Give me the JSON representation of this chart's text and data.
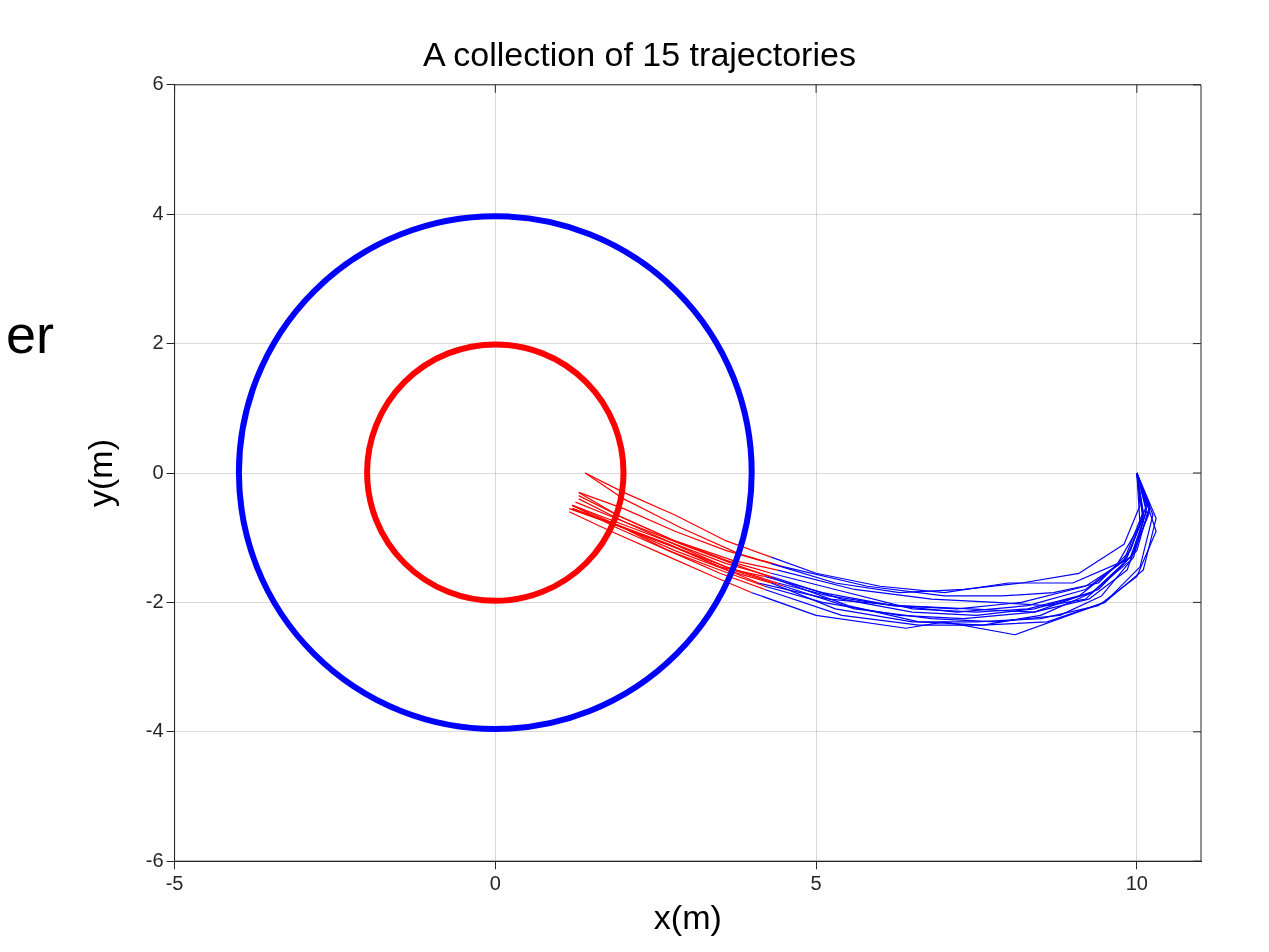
{
  "chart_data": {
    "type": "line",
    "title": "A collection of 15 trajectories",
    "xlabel": "x(m)",
    "ylabel": "y(m)",
    "annotations": [
      "er"
    ],
    "xlim": [
      -5,
      11
    ],
    "xticks": [
      -5,
      0,
      5,
      10
    ],
    "ylim": [
      -6,
      6
    ],
    "yticks": [
      -6,
      -4,
      -2,
      0,
      2,
      4,
      6
    ],
    "grid": true,
    "marker": "none",
    "line_style": "solid",
    "series": [
      {
        "color": "#0000ff",
        "x": [
          10,
          10.15,
          9.9,
          9.2,
          8.2,
          7.2,
          6.2,
          5.2,
          4.4
        ],
        "values": [
          0,
          -0.6,
          -1.3,
          -1.75,
          -2.0,
          -2.1,
          -2.05,
          -1.9,
          -1.7
        ]
      },
      {
        "color": "#0000ff",
        "x": [
          10,
          10.2,
          10.0,
          9.4,
          8.4,
          7.3,
          6.3,
          5.1,
          4.2
        ],
        "values": [
          0,
          -0.5,
          -1.2,
          -1.8,
          -2.15,
          -2.25,
          -2.2,
          -2.0,
          -1.75
        ]
      },
      {
        "color": "#0000ff",
        "x": [
          10,
          10.3,
          10.1,
          9.5,
          8.1,
          7.0,
          6.4,
          5.0,
          4.0
        ],
        "values": [
          0,
          -0.7,
          -1.5,
          -2.0,
          -2.5,
          -2.3,
          -2.4,
          -2.2,
          -1.85
        ]
      },
      {
        "color": "#0000ff",
        "x": [
          10,
          10.05,
          9.7,
          9.0,
          8.0,
          7.0,
          6.0,
          5.0,
          4.3
        ],
        "values": [
          0,
          -0.8,
          -1.4,
          -1.7,
          -1.7,
          -1.85,
          -1.75,
          -1.55,
          -1.3
        ]
      },
      {
        "color": "#0000ff",
        "x": [
          10,
          10.1,
          9.8,
          9.1,
          8.3,
          7.5,
          6.5,
          5.3,
          4.3
        ],
        "values": [
          0,
          -0.6,
          -1.35,
          -1.9,
          -2.1,
          -2.15,
          -2.1,
          -1.8,
          -1.55
        ]
      },
      {
        "color": "#0000ff",
        "x": [
          10,
          10.2,
          9.95,
          9.3,
          8.5,
          7.6,
          6.6,
          5.5,
          4.4
        ],
        "values": [
          0,
          -0.55,
          -1.25,
          -1.85,
          -2.2,
          -2.35,
          -2.3,
          -2.05,
          -1.65
        ]
      },
      {
        "color": "#0000ff",
        "x": [
          10,
          10.1,
          9.8,
          9.2,
          8.6,
          7.8,
          6.8,
          5.6,
          4.4
        ],
        "values": [
          0,
          -0.7,
          -1.4,
          -1.95,
          -2.05,
          -2.0,
          -1.95,
          -1.8,
          -1.5
        ]
      },
      {
        "color": "#0000ff",
        "x": [
          10,
          10.15,
          9.9,
          9.4,
          8.7,
          7.9,
          7.0,
          5.8,
          4.5
        ],
        "values": [
          0,
          -0.5,
          -1.2,
          -1.7,
          -1.85,
          -1.9,
          -1.9,
          -1.75,
          -1.45
        ]
      },
      {
        "color": "#0000ff",
        "x": [
          10,
          10.25,
          10.05,
          9.5,
          8.6,
          7.6,
          6.6,
          5.4,
          4.2
        ],
        "values": [
          0,
          -0.65,
          -1.45,
          -2.0,
          -2.3,
          -2.35,
          -2.35,
          -2.2,
          -1.8
        ]
      },
      {
        "color": "#0000ff",
        "x": [
          10,
          10.1,
          9.85,
          9.25,
          8.4,
          7.4,
          6.3,
          5.2,
          4.1
        ],
        "values": [
          0,
          -0.75,
          -1.5,
          -1.95,
          -2.15,
          -2.1,
          -2.05,
          -1.95,
          -1.7
        ]
      },
      {
        "color": "#0000ff",
        "x": [
          10,
          10.05,
          9.8,
          9.1,
          8.2,
          7.3,
          6.3,
          5.3,
          4.3
        ],
        "values": [
          0,
          -0.5,
          -1.1,
          -1.55,
          -1.7,
          -1.8,
          -1.85,
          -1.7,
          -1.4
        ]
      },
      {
        "color": "#0000ff",
        "x": [
          10,
          10.2,
          9.9,
          9.3,
          8.4,
          7.5,
          6.5,
          5.4,
          4.3
        ],
        "values": [
          0,
          -0.6,
          -1.35,
          -1.85,
          -2.1,
          -2.2,
          -2.15,
          -1.95,
          -1.6
        ]
      },
      {
        "color": "#0000ff",
        "x": [
          10,
          10.15,
          9.95,
          9.45,
          8.8,
          7.8,
          6.8,
          5.6,
          4.5
        ],
        "values": [
          0,
          -0.55,
          -1.3,
          -1.9,
          -2.2,
          -2.3,
          -2.25,
          -2.1,
          -1.75
        ]
      },
      {
        "color": "#0000ff",
        "x": [
          10,
          10.1,
          9.85,
          9.2,
          8.3,
          7.2,
          6.2,
          5.1,
          4.2
        ],
        "values": [
          0,
          -0.65,
          -1.3,
          -1.8,
          -2.05,
          -2.15,
          -2.05,
          -1.85,
          -1.6
        ]
      },
      {
        "color": "#0000ff",
        "x": [
          10,
          10.3,
          10.0,
          9.4,
          8.5,
          7.5,
          6.5,
          5.3,
          4.3
        ],
        "values": [
          0,
          -0.9,
          -1.6,
          -2.05,
          -2.25,
          -2.3,
          -2.3,
          -2.1,
          -1.7
        ]
      },
      {
        "color": "#ff0000",
        "x": [
          4.4,
          3.6,
          2.8,
          2.0,
          1.2
        ],
        "values": [
          -1.7,
          -1.45,
          -1.15,
          -0.85,
          -0.55
        ]
      },
      {
        "color": "#ff0000",
        "x": [
          4.2,
          3.5,
          2.7,
          1.9,
          1.2
        ],
        "values": [
          -1.75,
          -1.5,
          -1.2,
          -0.85,
          -0.5
        ]
      },
      {
        "color": "#ff0000",
        "x": [
          4.0,
          3.4,
          2.6,
          1.8,
          1.15
        ],
        "values": [
          -1.85,
          -1.6,
          -1.25,
          -0.9,
          -0.6
        ]
      },
      {
        "color": "#ff0000",
        "x": [
          4.3,
          3.6,
          2.8,
          2.0,
          1.4
        ],
        "values": [
          -1.3,
          -1.05,
          -0.65,
          -0.3,
          0
        ]
      },
      {
        "color": "#ff0000",
        "x": [
          4.3,
          3.6,
          2.8,
          2.0,
          1.3
        ],
        "values": [
          -1.55,
          -1.35,
          -1.05,
          -0.7,
          -0.35
        ]
      },
      {
        "color": "#ff0000",
        "x": [
          4.4,
          3.7,
          2.9,
          2.0,
          1.25
        ],
        "values": [
          -1.65,
          -1.4,
          -1.1,
          -0.75,
          -0.45
        ]
      },
      {
        "color": "#ff0000",
        "x": [
          4.4,
          3.7,
          2.8,
          1.9,
          1.3
        ],
        "values": [
          -1.5,
          -1.35,
          -1.05,
          -0.65,
          -0.3
        ]
      },
      {
        "color": "#ff0000",
        "x": [
          4.5,
          3.8,
          2.9,
          2.0,
          1.4
        ],
        "values": [
          -1.45,
          -1.25,
          -0.85,
          -0.4,
          0
        ]
      },
      {
        "color": "#ff0000",
        "x": [
          4.2,
          3.5,
          2.7,
          1.9,
          1.2
        ],
        "values": [
          -1.8,
          -1.55,
          -1.2,
          -0.8,
          -0.5
        ]
      },
      {
        "color": "#ff0000",
        "x": [
          4.1,
          3.5,
          2.7,
          1.9,
          1.2
        ],
        "values": [
          -1.7,
          -1.45,
          -1.1,
          -0.8,
          -0.55
        ]
      },
      {
        "color": "#ff0000",
        "x": [
          4.3,
          3.6,
          2.8,
          2.0,
          1.3
        ],
        "values": [
          -1.4,
          -1.2,
          -0.9,
          -0.55,
          -0.3
        ]
      },
      {
        "color": "#ff0000",
        "x": [
          4.3,
          3.6,
          2.8,
          2.0,
          1.2
        ],
        "values": [
          -1.6,
          -1.4,
          -1.1,
          -0.8,
          -0.5
        ]
      },
      {
        "color": "#ff0000",
        "x": [
          4.5,
          3.7,
          2.9,
          2.0,
          1.3
        ],
        "values": [
          -1.75,
          -1.5,
          -1.15,
          -0.75,
          -0.4
        ]
      },
      {
        "color": "#ff0000",
        "x": [
          4.2,
          3.5,
          2.8,
          2.0,
          1.2
        ],
        "values": [
          -1.6,
          -1.45,
          -1.15,
          -0.85,
          -0.55
        ]
      },
      {
        "color": "#ff0000",
        "x": [
          4.3,
          3.6,
          2.8,
          2.0,
          1.15
        ],
        "values": [
          -1.7,
          -1.5,
          -1.2,
          -0.85,
          -0.55
        ]
      }
    ]
  }
}
